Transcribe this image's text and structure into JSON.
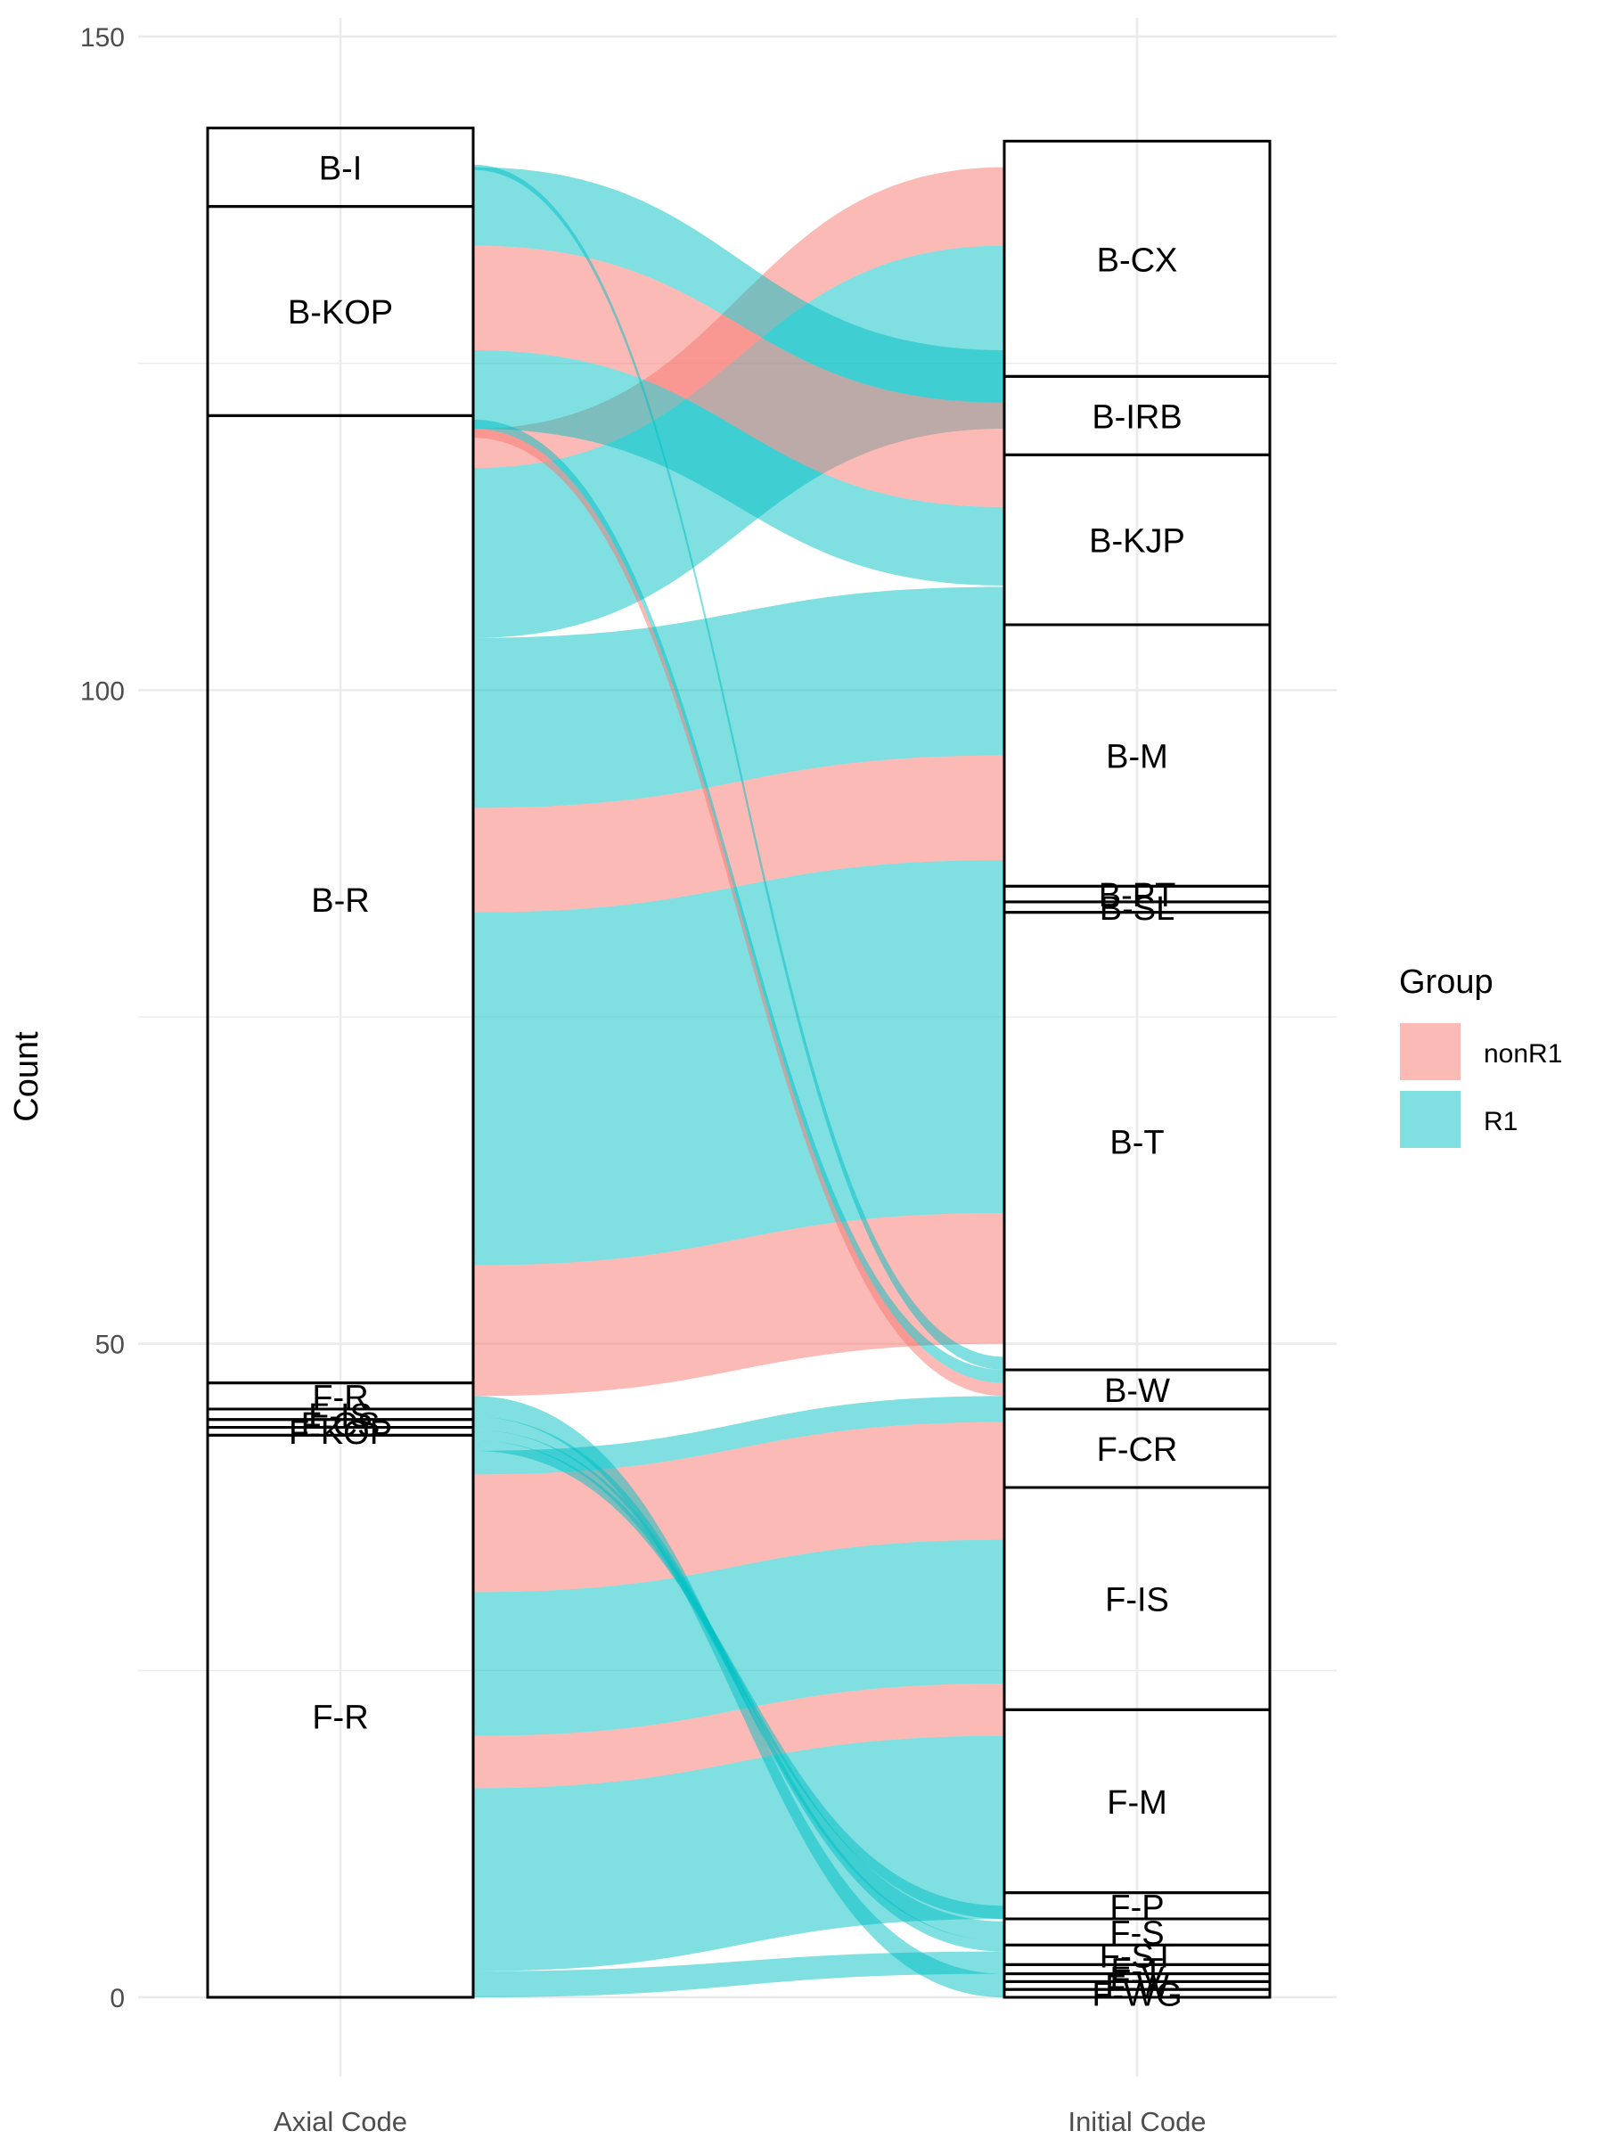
{
  "chart_data": {
    "type": "alluvial",
    "ylabel": "Count",
    "xlabel": "",
    "ylim": [
      0,
      150
    ],
    "y_ticks": [
      0,
      50,
      100,
      150
    ],
    "axes": [
      "Axial Code",
      "Initial Code"
    ],
    "grid": true,
    "legend": {
      "title": "Group",
      "position": "right",
      "items": [
        {
          "name": "nonR1",
          "color": "#F8766D"
        },
        {
          "name": "R1",
          "color": "#00BFC4"
        }
      ]
    },
    "strata": {
      "Axial Code": [
        {
          "label": "F-R",
          "value": 43
        },
        {
          "label": "F-KOP",
          "value": 0.6
        },
        {
          "label": "F-CS",
          "value": 0.6
        },
        {
          "label": "F-IS",
          "value": 0.8
        },
        {
          "label": "F-R",
          "value": 2
        },
        {
          "label": "B-R",
          "value": 74
        },
        {
          "label": "B-KOP",
          "value": 16
        },
        {
          "label": "B-I",
          "value": 6
        }
      ],
      "Initial Code": [
        {
          "label": "F-WG",
          "value": 0.6
        },
        {
          "label": "F-W",
          "value": 0.6
        },
        {
          "label": "F-V",
          "value": 0.6
        },
        {
          "label": "F-T",
          "value": 0.7
        },
        {
          "label": "F-ST",
          "value": 1.5
        },
        {
          "label": "F-S",
          "value": 2
        },
        {
          "label": "F-P",
          "value": 2
        },
        {
          "label": "F-M",
          "value": 14
        },
        {
          "label": "F-IS",
          "value": 17
        },
        {
          "label": "F-CR",
          "value": 6
        },
        {
          "label": "B-W",
          "value": 3
        },
        {
          "label": "B-T",
          "value": 35
        },
        {
          "label": "B-SL",
          "value": 0.8
        },
        {
          "label": "B-PT",
          "value": 1.2
        },
        {
          "label": "B-M",
          "value": 20
        },
        {
          "label": "B-KJP",
          "value": 13
        },
        {
          "label": "B-IRB",
          "value": 6
        },
        {
          "label": "B-CX",
          "value": 18
        }
      ]
    },
    "flows": [
      {
        "group": "R1",
        "left": [
          0,
          2
        ],
        "right": [
          1.8,
          3.5
        ]
      },
      {
        "group": "R1",
        "left": [
          2,
          16
        ],
        "right": [
          6,
          20
        ]
      },
      {
        "group": "nonR1",
        "left": [
          16,
          20
        ],
        "right": [
          20,
          24
        ]
      },
      {
        "group": "R1",
        "left": [
          20,
          31
        ],
        "right": [
          24,
          35
        ]
      },
      {
        "group": "nonR1",
        "left": [
          31,
          40
        ],
        "right": [
          35,
          44
        ]
      },
      {
        "group": "R1",
        "left": [
          40,
          41.8
        ],
        "right": [
          44,
          46
        ]
      },
      {
        "group": "R1",
        "left": [
          41.8,
          42.6
        ],
        "right": [
          6,
          7
        ]
      },
      {
        "group": "R1",
        "left": [
          42.6,
          43.4
        ],
        "right": [
          4.3,
          5.8
        ]
      },
      {
        "group": "R1",
        "left": [
          43.4,
          44.4
        ],
        "right": [
          3.5,
          4.3
        ]
      },
      {
        "group": "R1",
        "left": [
          44.4,
          46
        ],
        "right": [
          0,
          1.8
        ]
      },
      {
        "group": "nonR1",
        "left": [
          46,
          56
        ],
        "right": [
          50,
          60
        ]
      },
      {
        "group": "R1",
        "left": [
          56,
          83
        ],
        "right": [
          60,
          87
        ]
      },
      {
        "group": "nonR1",
        "left": [
          83,
          91
        ],
        "right": [
          87,
          95
        ]
      },
      {
        "group": "R1",
        "left": [
          91,
          104
        ],
        "right": [
          95,
          107.9
        ]
      },
      {
        "group": "R1",
        "left": [
          104,
          117
        ],
        "right": [
          120,
          134
        ]
      },
      {
        "group": "nonR1",
        "left": [
          117,
          120
        ],
        "right": [
          134,
          140
        ]
      },
      {
        "group": "nonR1",
        "left": [
          119.3,
          120
        ],
        "right": [
          46,
          47
        ]
      },
      {
        "group": "R1",
        "left": [
          120,
          120.7
        ],
        "right": [
          47,
          48
        ]
      },
      {
        "group": "R1",
        "left": [
          120,
          126
        ],
        "right": [
          108,
          114
        ]
      },
      {
        "group": "nonR1",
        "left": [
          126,
          134
        ],
        "right": [
          114,
          122
        ]
      },
      {
        "group": "R1",
        "left": [
          134,
          140
        ],
        "right": [
          122,
          126
        ]
      },
      {
        "group": "R1",
        "left": [
          139.8,
          140.2
        ],
        "right": [
          48,
          49
        ]
      }
    ]
  }
}
